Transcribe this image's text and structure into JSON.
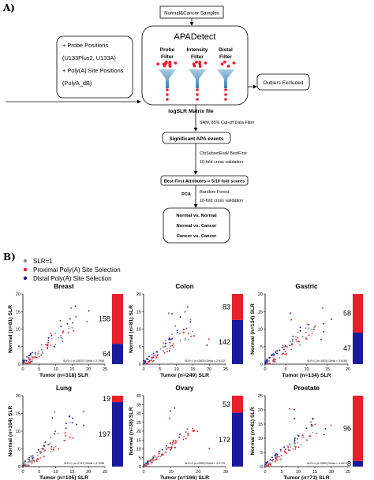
{
  "panel_a": {
    "label": "A)",
    "top_box": "Normal&Cancer Samples",
    "left_box": [
      "+ Probe Positions",
      "(U133Plus2, U133A)",
      "+ Poly(A) Site Positions",
      "(PolyA_dB)"
    ],
    "tool_title": "APADetect",
    "filters": [
      {
        "line1": "Probe",
        "line2": "Filter"
      },
      {
        "line1": "Intensity",
        "line2": "Filter"
      },
      {
        "line1": "Distal",
        "line2": "Filter"
      }
    ],
    "outliers": "Outliers Excluded",
    "matrix_label": "logSLR Matrix file",
    "sam_note": "SAM, 85% Cut-off Data Filter",
    "sig_box": "Significant APA events",
    "cfs_note_1": "CfsSubsetEval/ BestFirst",
    "cfs_note_2": "10-fold cross validation",
    "bestfirst_box": "Best First Attributes-> 5/10 fold scores",
    "pca_label": "PCA",
    "rf_note_1": "Random Forest",
    "rf_note_2": "10-fold cross validation",
    "result_lines": [
      "Normal vs. Normal",
      "Normal vs. Cancer",
      "Cancer vs. Cancer"
    ]
  },
  "panel_b": {
    "label": "B)",
    "legend": [
      {
        "text": "SLR=1",
        "color": "#888888"
      },
      {
        "text": "Proximal Poly(A) Site Selection",
        "color": "#e8202a"
      },
      {
        "text": "Distal Poly(A) Site Selection",
        "color": "#1a1a9c"
      }
    ],
    "colors": {
      "proximal": "#e8202a",
      "distal": "#1a1a9c",
      "slr1": "#888888"
    }
  },
  "chart_data": [
    {
      "type": "scatter",
      "title": "Breast",
      "xlabel": "Tumor (n=318) SLR",
      "ylabel": "Normal (n=81) SLR",
      "xlim": [
        0,
        25
      ],
      "ylim": [
        0,
        20
      ],
      "xticks": [
        0,
        5,
        10,
        15,
        20,
        25
      ],
      "yticks": [
        0,
        5,
        10,
        15,
        20
      ],
      "annotation": "SLR=1 (n=2602); Delta = 2.7955",
      "proximal_count": 158,
      "distal_count": 64,
      "bar_proximal_fraction": 0.71
    },
    {
      "type": "scatter",
      "title": "Colon",
      "xlabel": "Tumor (n=249) SLR",
      "ylabel": "Normal (n=81) SLR",
      "xlim": [
        0,
        25
      ],
      "ylim": [
        0,
        20
      ],
      "xticks": [
        0,
        5,
        10,
        15,
        20,
        25
      ],
      "yticks": [
        0,
        5,
        10,
        15,
        20
      ],
      "annotation": "SLR=1 (n=2803) Delta = 2.9122",
      "proximal_count": 83,
      "distal_count": 142,
      "bar_proximal_fraction": 0.37
    },
    {
      "type": "scatter",
      "title": "Gastric",
      "xlabel": "Tumor (n=134) SLR",
      "ylabel": "Normal (n=134) SLR",
      "xlim": [
        0,
        20
      ],
      "ylim": [
        0,
        20
      ],
      "xticks": [
        0,
        5,
        10,
        15,
        20
      ],
      "yticks": [
        0,
        5,
        10,
        15,
        20
      ],
      "annotation": "SLR=1 (n=1803) Delta = 3.6166",
      "proximal_count": 58,
      "distal_count": 47,
      "bar_proximal_fraction": 0.55
    },
    {
      "type": "scatter",
      "title": "Lung",
      "xlabel": "Tumor (n=105) SLR",
      "ylabel": "Normal (n=104) SLR",
      "xlim": [
        0,
        25
      ],
      "ylim": [
        0,
        20
      ],
      "xticks": [
        0,
        5,
        10,
        15,
        20,
        25
      ],
      "yticks": [
        0,
        5,
        10,
        15,
        20
      ],
      "annotation": "SLR=1 (n=2747) Delta = 4.7698",
      "proximal_count": 19,
      "distal_count": 197,
      "bar_proximal_fraction": 0.09
    },
    {
      "type": "scatter",
      "title": "Ovary",
      "xlabel": "Tumor (n=166) SLR",
      "ylabel": "Normal (n=38) SLR",
      "xlim": [
        0,
        30
      ],
      "ylim": [
        0,
        40
      ],
      "xticks": [
        0,
        10,
        20,
        30
      ],
      "yticks": [
        0,
        5,
        10,
        15,
        20,
        25,
        30,
        35,
        40
      ],
      "annotation": "SLR=1 (n=2559) Delta = 3.0775",
      "proximal_count": 53,
      "distal_count": 172,
      "bar_proximal_fraction": 0.24
    },
    {
      "type": "scatter",
      "title": "Prostate",
      "xlabel": "Tumor (n=73) SLR",
      "ylabel": "Normal (n=41) SLR",
      "xlim": [
        0,
        25
      ],
      "ylim": [
        0,
        25
      ],
      "xticks": [
        0,
        5,
        10,
        15,
        20,
        25
      ],
      "yticks": [
        0,
        5,
        10,
        15,
        20,
        25
      ],
      "annotation": "SLR=1 (n=2880) Delta = 4.4074",
      "proximal_count": 96,
      "distal_count": 8,
      "bar_proximal_fraction": 0.92
    }
  ]
}
